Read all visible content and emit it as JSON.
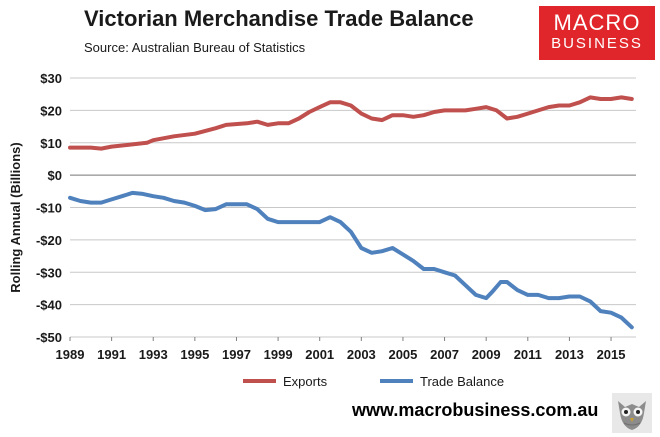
{
  "header": {
    "title": "Victorian Merchandise Trade Balance",
    "source": "Source: Australian Bureau of Statistics"
  },
  "logo": {
    "line1": "MACRO",
    "line2": "BUSINESS"
  },
  "footer": {
    "url": "www.macrobusiness.com.au"
  },
  "colors": {
    "exports": "#c0504d",
    "trade_balance": "#4f81bd",
    "logo_bg": "#e0262b",
    "gridline": "#c8c8c8"
  },
  "icons": {
    "mascot": "owl-icon"
  },
  "chart_data": {
    "type": "line",
    "title": "Victorian Merchandise Trade Balance",
    "subtitle": "Source: Australian Bureau of Statistics",
    "xlabel": "",
    "ylabel": "Rolling Annual (Billions)",
    "xlim": [
      1989,
      2016.2
    ],
    "ylim": [
      -50,
      30
    ],
    "x_ticks": [
      1989,
      1991,
      1993,
      1995,
      1997,
      1999,
      2001,
      2003,
      2005,
      2007,
      2009,
      2011,
      2013,
      2015
    ],
    "x_tick_labels": [
      "1989",
      "1991",
      "1993",
      "1995",
      "1997",
      "1999",
      "2001",
      "2003",
      "2005",
      "2007",
      "2009",
      "2011",
      "2013",
      "2015"
    ],
    "y_ticks": [
      30,
      20,
      10,
      0,
      -10,
      -20,
      -30,
      -40,
      -50
    ],
    "y_tick_labels": [
      "$30",
      "$20",
      "$10",
      "$0",
      "-$10",
      "-$20",
      "-$30",
      "-$40",
      "-$50"
    ],
    "grid": true,
    "legend": "bottom",
    "series": [
      {
        "name": "Exports",
        "color": "#c0504d",
        "points": [
          [
            1989.0,
            8.5
          ],
          [
            1990.0,
            8.5
          ],
          [
            1990.5,
            8.2
          ],
          [
            1991.0,
            8.8
          ],
          [
            1992.0,
            9.5
          ],
          [
            1992.7,
            10.0
          ],
          [
            1993.0,
            10.8
          ],
          [
            1994.0,
            12.0
          ],
          [
            1995.0,
            12.8
          ],
          [
            1996.0,
            14.5
          ],
          [
            1996.5,
            15.5
          ],
          [
            1997.5,
            16.0
          ],
          [
            1998.0,
            16.5
          ],
          [
            1998.5,
            15.5
          ],
          [
            1999.0,
            16.0
          ],
          [
            1999.5,
            16.0
          ],
          [
            2000.0,
            17.5
          ],
          [
            2000.5,
            19.5
          ],
          [
            2001.0,
            21.0
          ],
          [
            2001.5,
            22.5
          ],
          [
            2002.0,
            22.5
          ],
          [
            2002.5,
            21.5
          ],
          [
            2003.0,
            19.0
          ],
          [
            2003.5,
            17.5
          ],
          [
            2004.0,
            17.0
          ],
          [
            2004.5,
            18.5
          ],
          [
            2005.0,
            18.5
          ],
          [
            2005.5,
            18.0
          ],
          [
            2006.0,
            18.5
          ],
          [
            2006.5,
            19.5
          ],
          [
            2007.0,
            20.0
          ],
          [
            2008.0,
            20.0
          ],
          [
            2008.5,
            20.5
          ],
          [
            2009.0,
            21.0
          ],
          [
            2009.5,
            20.0
          ],
          [
            2010.0,
            17.5
          ],
          [
            2010.5,
            18.0
          ],
          [
            2011.0,
            19.0
          ],
          [
            2012.0,
            21.0
          ],
          [
            2012.5,
            21.5
          ],
          [
            2013.0,
            21.5
          ],
          [
            2013.5,
            22.5
          ],
          [
            2014.0,
            24.0
          ],
          [
            2014.5,
            23.5
          ],
          [
            2015.0,
            23.5
          ],
          [
            2015.5,
            24.0
          ],
          [
            2016.0,
            23.5
          ]
        ]
      },
      {
        "name": "Trade Balance",
        "color": "#4f81bd",
        "points": [
          [
            1989.0,
            -7.0
          ],
          [
            1989.5,
            -8.0
          ],
          [
            1990.0,
            -8.5
          ],
          [
            1990.5,
            -8.5
          ],
          [
            1991.0,
            -7.5
          ],
          [
            1991.5,
            -6.5
          ],
          [
            1992.0,
            -5.5
          ],
          [
            1992.5,
            -5.8
          ],
          [
            1993.0,
            -6.5
          ],
          [
            1993.5,
            -7.0
          ],
          [
            1994.0,
            -8.0
          ],
          [
            1994.5,
            -8.5
          ],
          [
            1995.0,
            -9.5
          ],
          [
            1995.5,
            -10.8
          ],
          [
            1996.0,
            -10.5
          ],
          [
            1996.5,
            -9.0
          ],
          [
            1997.0,
            -9.0
          ],
          [
            1997.5,
            -9.0
          ],
          [
            1998.0,
            -10.5
          ],
          [
            1998.5,
            -13.5
          ],
          [
            1999.0,
            -14.5
          ],
          [
            1999.5,
            -14.5
          ],
          [
            2000.0,
            -14.5
          ],
          [
            2000.5,
            -14.5
          ],
          [
            2001.0,
            -14.5
          ],
          [
            2001.5,
            -13.0
          ],
          [
            2002.0,
            -14.5
          ],
          [
            2002.5,
            -17.5
          ],
          [
            2003.0,
            -22.5
          ],
          [
            2003.5,
            -24.0
          ],
          [
            2004.0,
            -23.5
          ],
          [
            2004.5,
            -22.5
          ],
          [
            2005.0,
            -24.5
          ],
          [
            2005.5,
            -26.5
          ],
          [
            2006.0,
            -29.0
          ],
          [
            2006.5,
            -29.0
          ],
          [
            2007.0,
            -30.0
          ],
          [
            2007.5,
            -31.0
          ],
          [
            2008.0,
            -34.0
          ],
          [
            2008.5,
            -37.0
          ],
          [
            2009.0,
            -38.0
          ],
          [
            2009.3,
            -36.0
          ],
          [
            2009.7,
            -33.0
          ],
          [
            2010.0,
            -33.0
          ],
          [
            2010.5,
            -35.5
          ],
          [
            2011.0,
            -37.0
          ],
          [
            2011.5,
            -37.0
          ],
          [
            2012.0,
            -38.0
          ],
          [
            2012.5,
            -38.0
          ],
          [
            2013.0,
            -37.5
          ],
          [
            2013.5,
            -37.5
          ],
          [
            2014.0,
            -39.0
          ],
          [
            2014.5,
            -42.0
          ],
          [
            2015.0,
            -42.5
          ],
          [
            2015.5,
            -44.0
          ],
          [
            2016.0,
            -47.0
          ]
        ]
      }
    ]
  }
}
